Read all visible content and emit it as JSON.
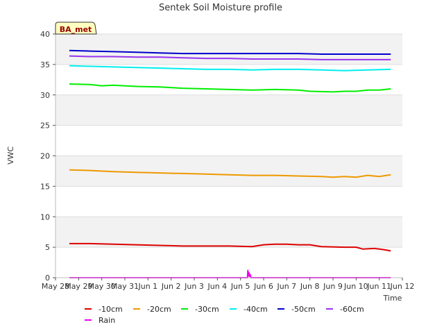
{
  "chart_data": {
    "type": "line",
    "title": "Sentek Soil Moisture profile",
    "xlabel": "Time",
    "ylabel": "VWC",
    "ylim": [
      0,
      40
    ],
    "yticks": [
      0,
      5,
      10,
      15,
      20,
      25,
      30,
      35,
      40
    ],
    "xlim": [
      0,
      15
    ],
    "xticks": [
      {
        "x": 0,
        "label": "May 28"
      },
      {
        "x": 1,
        "label": "May 29"
      },
      {
        "x": 2,
        "label": "May 30"
      },
      {
        "x": 3,
        "label": "May 31"
      },
      {
        "x": 4,
        "label": "Jun 1"
      },
      {
        "x": 5,
        "label": "Jun 2"
      },
      {
        "x": 6,
        "label": "Jun 3"
      },
      {
        "x": 7,
        "label": "Jun 4"
      },
      {
        "x": 8,
        "label": "Jun 5"
      },
      {
        "x": 9,
        "label": "Jun 6"
      },
      {
        "x": 10,
        "label": "Jun 7"
      },
      {
        "x": 11,
        "label": "Jun 8"
      },
      {
        "x": 12,
        "label": "Jun 9"
      },
      {
        "x": 13,
        "label": "Jun 10"
      },
      {
        "x": 14,
        "label": "Jun 11"
      },
      {
        "x": 15,
        "label": "Jun 12"
      }
    ],
    "grid": true,
    "banded_background": true,
    "station_label": "BA_met",
    "legend_position": "bottom",
    "series": [
      {
        "name": "-10cm",
        "color": "#dd0000",
        "x": [
          0.6,
          1.5,
          2.5,
          3.5,
          4.5,
          5.5,
          6.5,
          7.5,
          8.5,
          9.0,
          9.5,
          10.0,
          10.5,
          11.0,
          11.5,
          12.5,
          13.0,
          13.3,
          13.8,
          14.2,
          14.5
        ],
        "y": [
          5.6,
          5.6,
          5.5,
          5.4,
          5.3,
          5.2,
          5.2,
          5.2,
          5.1,
          5.4,
          5.5,
          5.5,
          5.4,
          5.4,
          5.1,
          5.0,
          5.0,
          4.7,
          4.8,
          4.6,
          4.4
        ]
      },
      {
        "name": "-20cm",
        "color": "#ee9900",
        "x": [
          0.6,
          1.5,
          2.5,
          3.5,
          4.5,
          5.5,
          6.5,
          7.5,
          8.5,
          9.5,
          10.5,
          11.5,
          12.0,
          12.5,
          13.0,
          13.5,
          14.0,
          14.5
        ],
        "y": [
          17.7,
          17.6,
          17.4,
          17.3,
          17.2,
          17.1,
          17.0,
          16.9,
          16.8,
          16.8,
          16.7,
          16.6,
          16.5,
          16.6,
          16.5,
          16.8,
          16.6,
          16.9
        ]
      },
      {
        "name": "-30cm",
        "color": "#00ee00",
        "x": [
          0.6,
          1.5,
          2.0,
          2.5,
          3.5,
          4.5,
          5.5,
          6.5,
          7.5,
          8.5,
          9.5,
          10.5,
          11.0,
          12.0,
          12.5,
          13.0,
          13.5,
          14.0,
          14.5
        ],
        "y": [
          31.8,
          31.7,
          31.5,
          31.6,
          31.4,
          31.3,
          31.1,
          31.0,
          30.9,
          30.8,
          30.9,
          30.8,
          30.6,
          30.5,
          30.6,
          30.6,
          30.8,
          30.8,
          31.0
        ]
      },
      {
        "name": "-40cm",
        "color": "#00eeee",
        "x": [
          0.6,
          1.5,
          2.5,
          3.5,
          4.5,
          5.5,
          6.5,
          7.5,
          8.5,
          9.5,
          10.5,
          11.5,
          12.5,
          13.5,
          14.5
        ],
        "y": [
          34.8,
          34.7,
          34.6,
          34.5,
          34.4,
          34.3,
          34.2,
          34.2,
          34.1,
          34.2,
          34.2,
          34.1,
          34.0,
          34.1,
          34.2
        ]
      },
      {
        "name": "-50cm",
        "color": "#0000cc",
        "x": [
          0.6,
          1.5,
          2.5,
          3.5,
          4.5,
          5.5,
          6.5,
          7.5,
          8.5,
          9.5,
          10.5,
          11.5,
          12.5,
          13.5,
          14.5
        ],
        "y": [
          37.3,
          37.2,
          37.1,
          37.0,
          36.9,
          36.8,
          36.8,
          36.8,
          36.8,
          36.8,
          36.8,
          36.7,
          36.7,
          36.7,
          36.7
        ]
      },
      {
        "name": "-60cm",
        "color": "#9933ee",
        "x": [
          0.6,
          1.5,
          2.5,
          3.5,
          4.5,
          5.5,
          6.5,
          7.5,
          8.5,
          9.5,
          10.5,
          11.5,
          12.5,
          13.5,
          14.5
        ],
        "y": [
          36.4,
          36.3,
          36.3,
          36.2,
          36.2,
          36.1,
          36.0,
          36.0,
          35.9,
          35.9,
          35.9,
          35.8,
          35.8,
          35.8,
          35.8
        ]
      },
      {
        "name": "Rain",
        "color": "#ee00ee",
        "x": [
          0.6,
          8.3,
          8.32,
          8.35,
          8.37,
          8.4,
          8.42,
          8.45,
          14.5
        ],
        "y": [
          0,
          0,
          1.2,
          0.3,
          0.8,
          0.2,
          0.5,
          0,
          0
        ]
      }
    ]
  }
}
